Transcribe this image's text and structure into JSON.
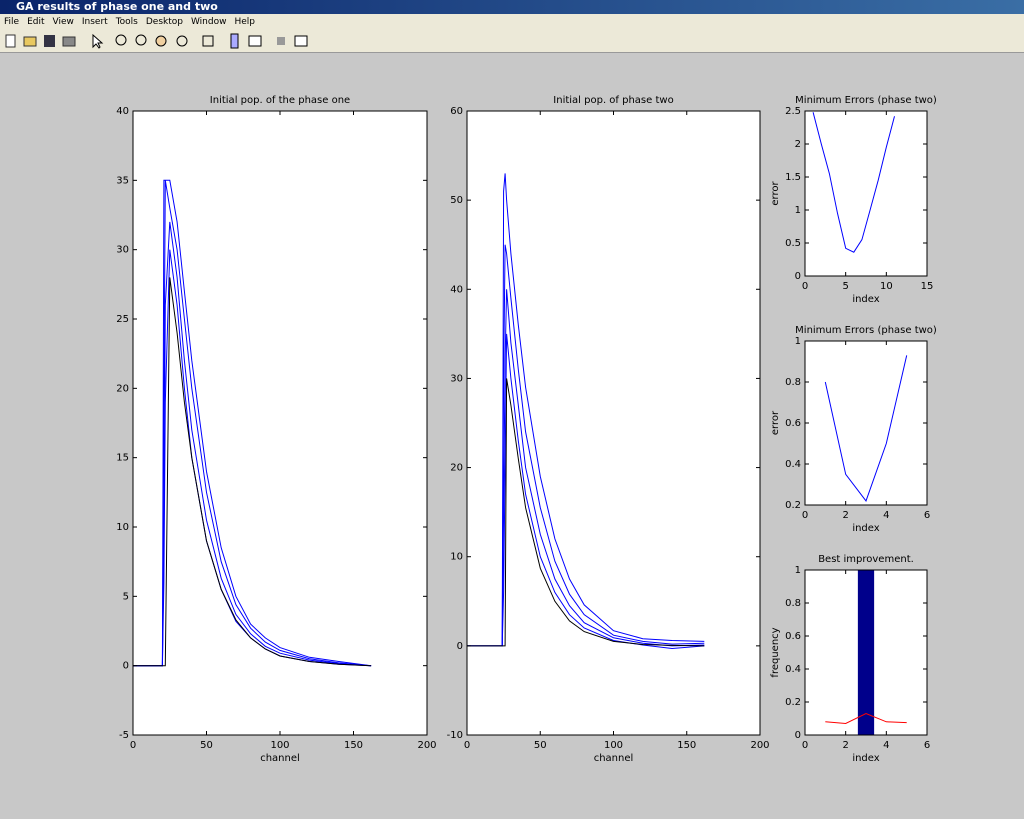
{
  "window": {
    "title": "GA results of phase one and two",
    "menu": [
      "File",
      "Edit",
      "View",
      "Insert",
      "Tools",
      "Desktop",
      "Window",
      "Help"
    ]
  },
  "chart_data": [
    {
      "type": "line",
      "title": "Initial pop. of the phase one",
      "xlabel": "channel",
      "xlim": [
        0,
        200
      ],
      "xticks": [
        0,
        50,
        100,
        150,
        200
      ],
      "ylim": [
        -5,
        40
      ],
      "yticks": [
        -5,
        0,
        5,
        10,
        15,
        20,
        25,
        30,
        35,
        40
      ],
      "x": [
        0,
        20,
        21,
        22,
        25,
        30,
        35,
        40,
        50,
        60,
        70,
        80,
        90,
        100,
        120,
        140,
        162
      ],
      "series": [
        {
          "color": "#0000ff",
          "values": [
            0,
            0,
            35,
            35,
            35,
            32,
            27,
            22,
            14,
            8.5,
            5,
            3,
            2,
            1.3,
            0.6,
            0.3,
            0
          ]
        },
        {
          "color": "#0000ff",
          "values": [
            0,
            0,
            19,
            35,
            33,
            30,
            25,
            20,
            12.5,
            7.5,
            4.4,
            2.7,
            1.7,
            1.1,
            0.5,
            0.2,
            0
          ]
        },
        {
          "color": "#0000ff",
          "values": [
            0,
            0,
            9,
            26,
            32,
            28,
            22,
            17,
            10.5,
            6.3,
            3.7,
            2.3,
            1.4,
            0.9,
            0.4,
            0.15,
            0
          ]
        },
        {
          "color": "#0000ff",
          "values": [
            0,
            0,
            6,
            19,
            30,
            26,
            20,
            15,
            9,
            5.5,
            3.2,
            2,
            1.2,
            0.7,
            0.3,
            0.1,
            0
          ]
        },
        {
          "color": "#000000",
          "values": [
            0,
            0,
            0,
            0,
            28,
            24,
            19,
            15,
            9,
            5.5,
            3.3,
            2,
            1.2,
            0.7,
            0.3,
            0.1,
            0
          ]
        }
      ]
    },
    {
      "type": "line",
      "title": "Initial pop. of phase two",
      "xlabel": "channel",
      "xlim": [
        0,
        200
      ],
      "xticks": [
        0,
        50,
        100,
        150,
        200
      ],
      "ylim": [
        -10,
        60
      ],
      "yticks": [
        -10,
        0,
        10,
        20,
        30,
        40,
        50,
        60
      ],
      "x": [
        0,
        24,
        25,
        26,
        27,
        30,
        35,
        40,
        50,
        60,
        70,
        80,
        100,
        120,
        140,
        162
      ],
      "series": [
        {
          "color": "#0000ff",
          "values": [
            0,
            0,
            51,
            53,
            50,
            44,
            36,
            29,
            19,
            12,
            7.5,
            4.6,
            1.7,
            0.8,
            0.6,
            0.5
          ]
        },
        {
          "color": "#0000ff",
          "values": [
            0,
            0,
            30,
            45,
            44,
            39,
            31,
            24,
            15.5,
            9.5,
            5.8,
            3.5,
            1.2,
            0.5,
            0.2,
            0.3
          ]
        },
        {
          "color": "#0000ff",
          "values": [
            0,
            0,
            15,
            32,
            40,
            34,
            27,
            20,
            12.5,
            7.5,
            4.5,
            2.6,
            0.9,
            0.3,
            0,
            0.1
          ]
        },
        {
          "color": "#0000ff",
          "values": [
            0,
            0,
            6,
            20,
            35,
            30,
            23,
            17,
            10,
            6,
            3.5,
            2,
            0.6,
            0.1,
            -0.3,
            0
          ]
        },
        {
          "color": "#000000",
          "values": [
            0,
            0,
            0,
            0,
            30,
            27,
            21,
            15.5,
            8.7,
            5,
            2.8,
            1.6,
            0.5,
            0.15,
            0.05,
            0
          ]
        }
      ]
    },
    {
      "type": "line",
      "title": "Minimum Errors (phase two)",
      "xlabel": "index",
      "ylabel": "error",
      "xlim": [
        0,
        15
      ],
      "xticks": [
        0,
        5,
        10,
        15
      ],
      "ylim": [
        0,
        2.5
      ],
      "yticks": [
        0,
        0.5,
        1,
        1.5,
        2,
        2.5
      ],
      "x": [
        1,
        2,
        3,
        4,
        5,
        6,
        7,
        8,
        9,
        10,
        11
      ],
      "series": [
        {
          "color": "#0000ff",
          "values": [
            2.48,
            2.0,
            1.55,
            0.95,
            0.42,
            0.36,
            0.55,
            1.0,
            1.45,
            1.95,
            2.42
          ]
        }
      ]
    },
    {
      "type": "line",
      "title": "Minimum Errors (phase two)",
      "xlabel": "index",
      "ylabel": "error",
      "xlim": [
        0,
        6
      ],
      "xticks": [
        0,
        2,
        4,
        6
      ],
      "ylim": [
        0.2,
        1
      ],
      "yticks": [
        0.2,
        0.4,
        0.6,
        0.8,
        1
      ],
      "x": [
        1,
        2,
        3,
        4,
        5
      ],
      "series": [
        {
          "color": "#0000ff",
          "values": [
            0.8,
            0.35,
            0.22,
            0.5,
            0.93
          ]
        }
      ]
    },
    {
      "type": "histogram",
      "title": "Best improvement.",
      "xlabel": "index",
      "ylabel": "frequency",
      "xlim": [
        0,
        6
      ],
      "xticks": [
        0,
        2,
        4,
        6
      ],
      "ylim": [
        0,
        1
      ],
      "yticks": [
        0,
        0.2,
        0.4,
        0.6,
        0.8,
        1
      ],
      "bins": [
        2.6,
        3.4
      ],
      "counts": [
        1
      ],
      "color": "#00008b",
      "x": [
        1,
        2,
        3,
        4,
        5
      ],
      "series": [
        {
          "color": "#ff0000",
          "values": [
            0.08,
            0.07,
            0.13,
            0.08,
            0.075
          ]
        }
      ]
    }
  ]
}
